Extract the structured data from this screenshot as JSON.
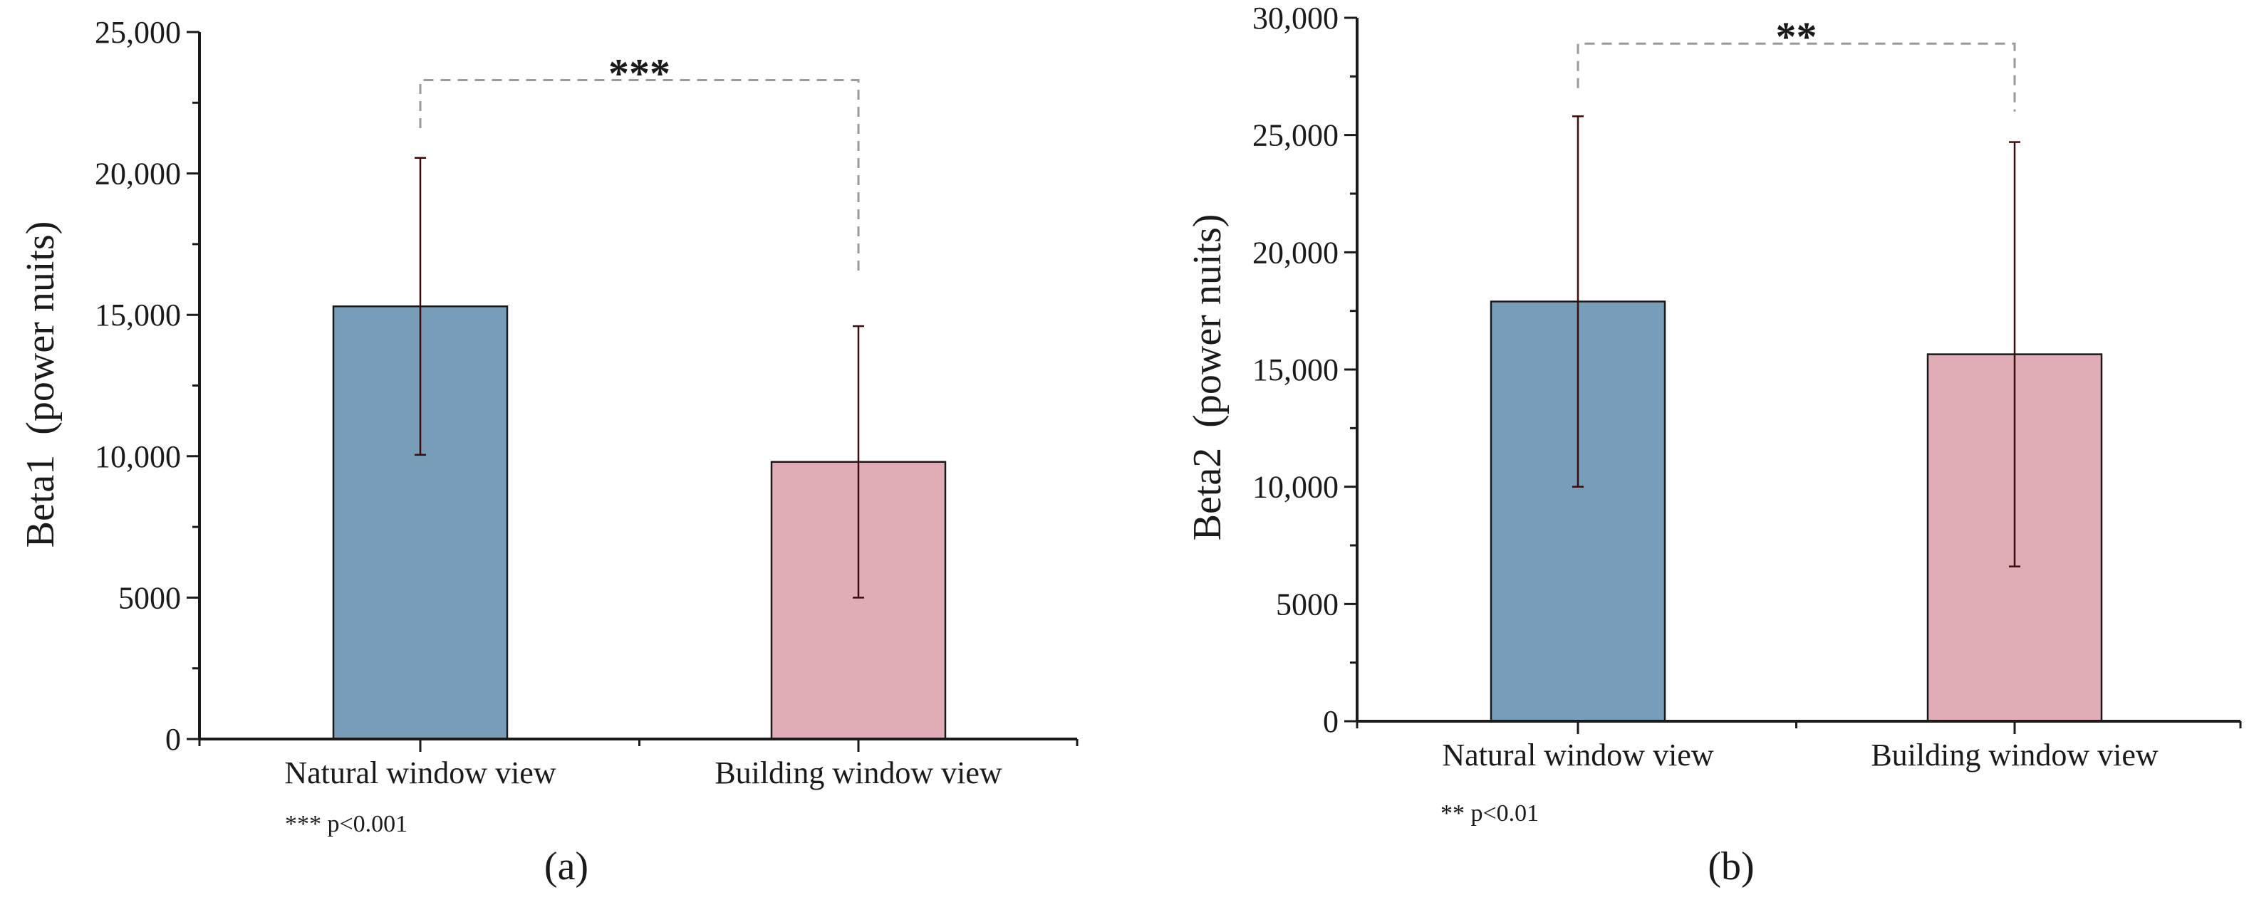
{
  "chart_data": [
    {
      "type": "bar",
      "panel_label": "(a)",
      "ylabel": "Beta1  (power nuits)",
      "xlabel": "",
      "categories": [
        "Natural window view",
        "Building window view"
      ],
      "values": [
        15300,
        9800
      ],
      "errors": [
        5250,
        4800
      ],
      "ylim": [
        0,
        25000
      ],
      "yticks": [
        0,
        5000,
        10000,
        15000,
        20000,
        25000
      ],
      "ytick_labels": [
        "0",
        "5000",
        "10,000",
        "15,000",
        "20,000",
        "25,000"
      ],
      "bar_colors": [
        "#789db8",
        "#e0adb7"
      ],
      "significance": {
        "stars": "***",
        "bracket_y": 23300,
        "left_drop_to": 21600,
        "right_drop_to": 16500
      },
      "footnote": "*** p<0.001",
      "grid": false
    },
    {
      "type": "bar",
      "panel_label": "(b)",
      "ylabel": "Beta2  (power nuits)",
      "xlabel": "",
      "categories": [
        "Natural window view",
        "Building window view"
      ],
      "values": [
        17900,
        15650
      ],
      "errors": [
        7900,
        9050
      ],
      "ylim": [
        0,
        30000
      ],
      "yticks": [
        0,
        5000,
        10000,
        15000,
        20000,
        25000,
        30000
      ],
      "ytick_labels": [
        "0",
        "5000",
        "10,000",
        "15,000",
        "20,000",
        "25,000",
        "30,000"
      ],
      "bar_colors": [
        "#789db8",
        "#e0adb7"
      ],
      "significance": {
        "stars": "**",
        "bracket_y": 28900,
        "left_drop_to": 27000,
        "right_drop_to": 26000
      },
      "footnote": "** p<0.01",
      "grid": false
    }
  ]
}
